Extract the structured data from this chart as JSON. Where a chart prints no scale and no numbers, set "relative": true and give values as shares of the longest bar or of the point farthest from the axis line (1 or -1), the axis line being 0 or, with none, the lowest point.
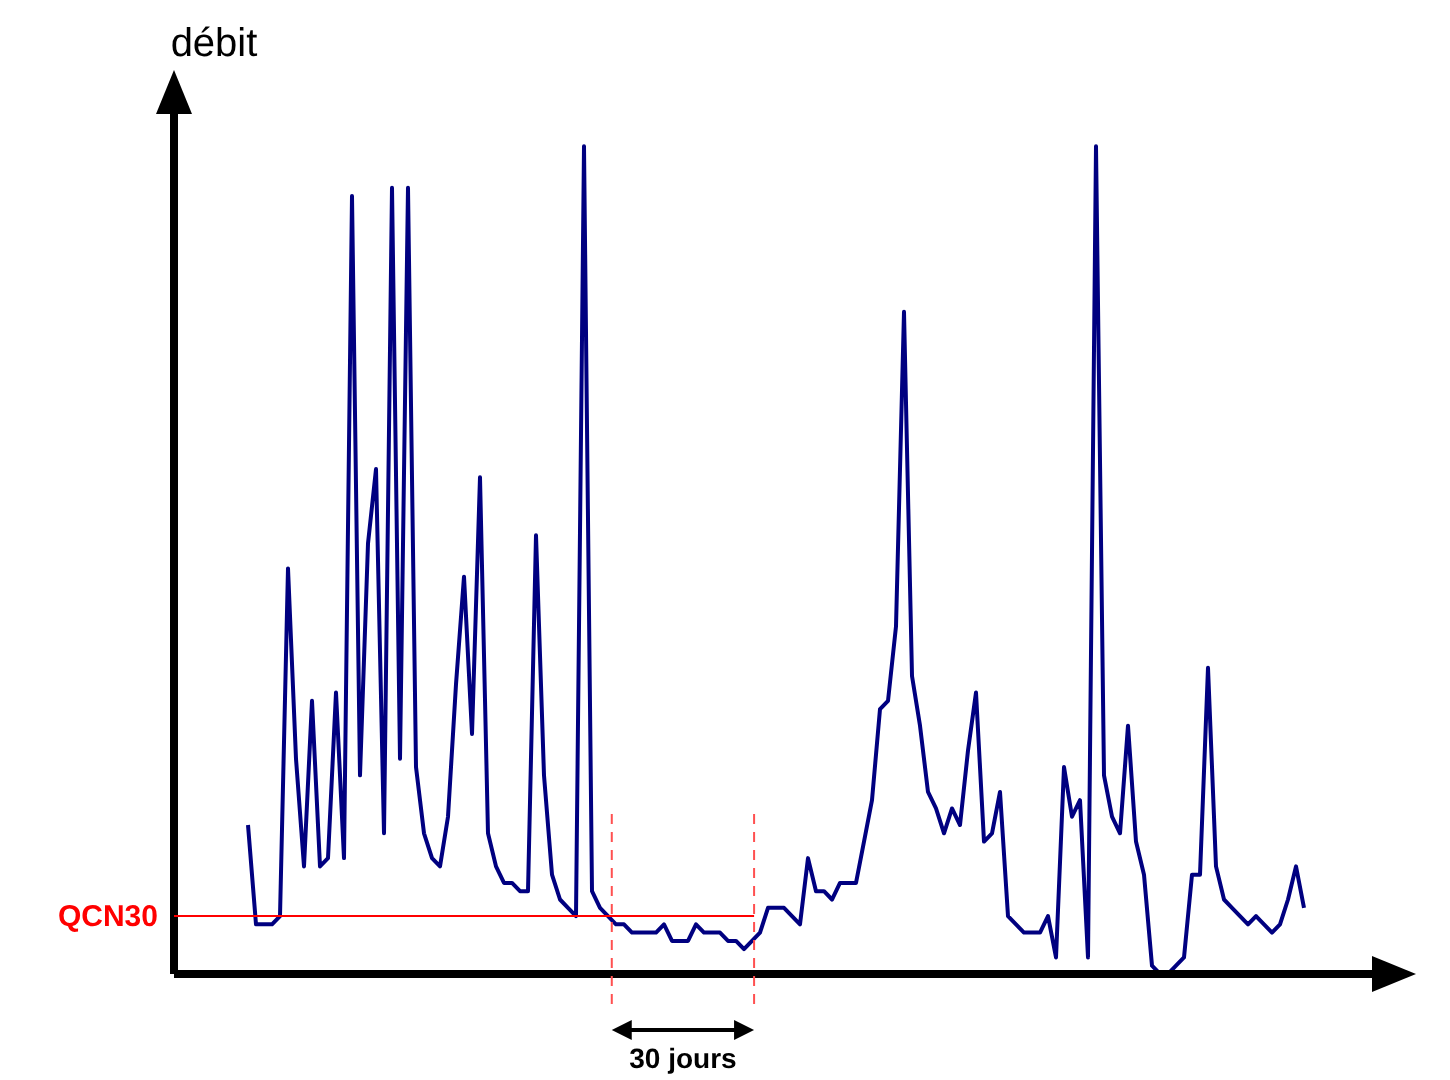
{
  "chart_data": {
    "type": "line",
    "relative": true,
    "ylabel": "débit",
    "marker": "none",
    "line_style": "solid",
    "annotations": [
      "30 jours"
    ],
    "ref_lines": [
      {
        "axis": "y",
        "value": 0.07,
        "label": "QCN30",
        "color": "#ff0000",
        "line_style": "solid"
      }
    ],
    "categories": [
      null,
      null,
      null,
      null,
      null,
      null,
      null,
      null,
      null,
      null,
      null,
      null,
      null,
      null,
      null,
      null,
      null,
      null,
      null,
      null,
      null,
      null,
      null,
      null,
      null,
      null,
      null,
      null,
      null,
      null,
      null,
      null,
      null,
      null,
      null,
      null,
      null,
      null,
      null,
      null,
      null,
      null,
      null,
      null,
      null,
      null,
      null,
      null,
      null,
      null,
      null,
      null,
      null,
      null,
      null,
      null,
      null,
      null,
      null,
      null,
      null,
      null,
      null,
      null,
      null,
      null,
      null,
      null,
      null,
      null,
      null,
      null,
      null,
      null,
      null,
      null,
      null,
      null,
      null,
      null,
      null,
      null,
      null,
      null,
      null,
      null,
      null,
      null,
      null,
      null,
      null,
      null,
      null,
      null,
      null,
      null,
      null,
      null,
      null,
      null,
      null,
      null,
      null,
      null,
      null,
      null,
      null,
      null,
      null,
      null,
      null,
      null,
      null,
      null,
      null,
      null,
      null,
      null,
      null,
      null,
      null,
      null,
      null,
      null,
      null,
      null,
      null,
      null,
      null,
      null,
      null,
      null,
      null
    ],
    "series": [
      {
        "color": "#000080",
        "values": [
          0.18,
          0.06,
          0.06,
          0.06,
          0.07,
          0.49,
          0.26,
          0.13,
          0.33,
          0.13,
          0.14,
          0.34,
          0.14,
          0.94,
          0.24,
          0.52,
          0.61,
          0.17,
          0.95,
          0.26,
          0.95,
          0.25,
          0.17,
          0.14,
          0.13,
          0.19,
          0.35,
          0.48,
          0.29,
          0.6,
          0.17,
          0.13,
          0.11,
          0.11,
          0.1,
          0.1,
          0.53,
          0.24,
          0.12,
          0.09,
          0.08,
          0.07,
          1,
          0.1,
          0.08,
          0.07,
          0.06,
          0.06,
          0.05,
          0.05,
          0.05,
          0.05,
          0.06,
          0.04,
          0.04,
          0.04,
          0.06,
          0.05,
          0.05,
          0.05,
          0.04,
          0.04,
          0.03,
          0.04,
          0.05,
          0.08,
          0.08,
          0.08,
          0.07,
          0.06,
          0.14,
          0.1,
          0.1,
          0.09,
          0.11,
          0.11,
          0.11,
          0.16,
          0.21,
          0.32,
          0.33,
          0.42,
          0.8,
          0.36,
          0.3,
          0.22,
          0.2,
          0.17,
          0.2,
          0.18,
          0.27,
          0.34,
          0.16,
          0.17,
          0.22,
          0.07,
          0.06,
          0.05,
          0.05,
          0.05,
          0.07,
          0.02,
          0.25,
          0.19,
          0.21,
          0.02,
          1,
          0.24,
          0.19,
          0.17,
          0.3,
          0.16,
          0.12,
          0.01,
          0,
          0,
          0.01,
          0.02,
          0.12,
          0.12,
          0.37,
          0.13,
          0.09,
          0.08,
          0.07,
          0.06,
          0.07,
          0.06,
          0.05,
          0.06,
          0.09,
          0.13,
          0.08
        ]
      }
    ]
  }
}
